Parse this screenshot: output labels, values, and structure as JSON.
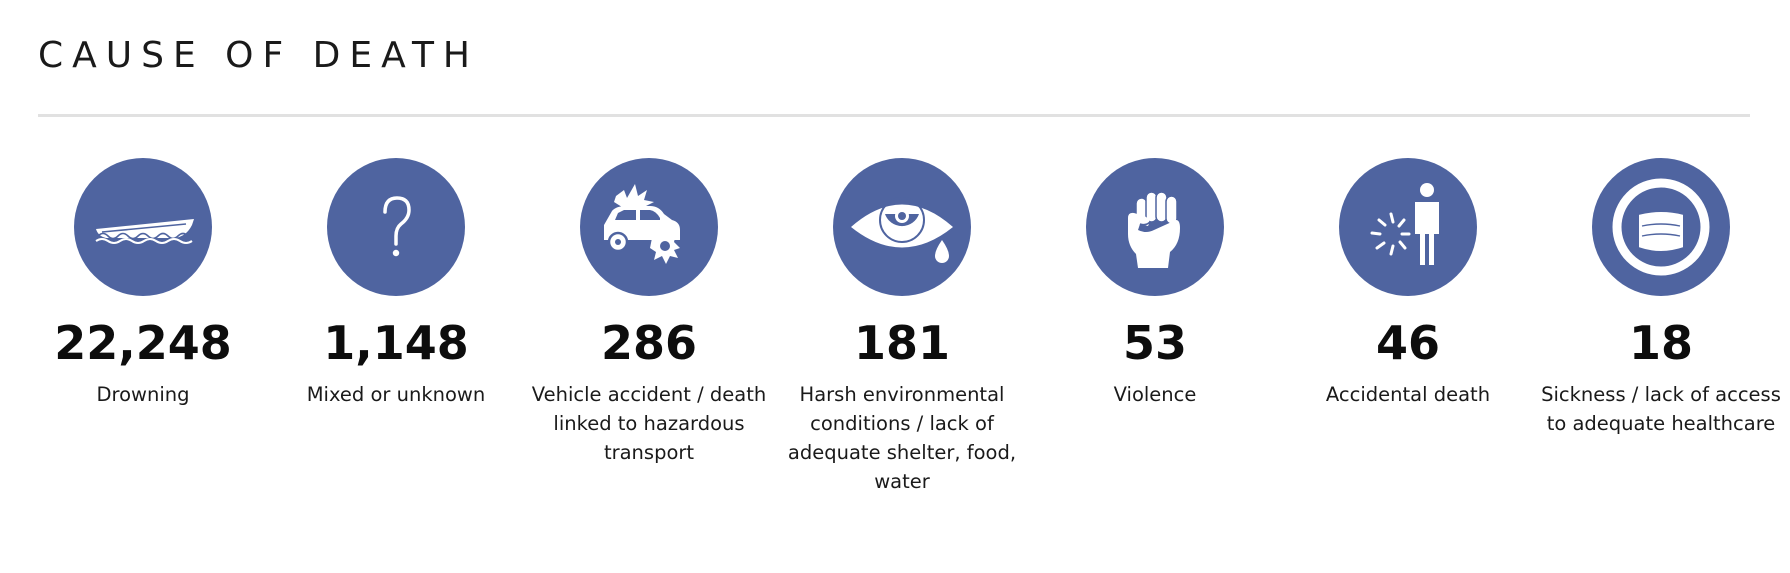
{
  "section": {
    "title": "CAUSE OF DEATH"
  },
  "colors": {
    "icon_background": "#4f64a0",
    "icon_foreground": "#ffffff",
    "divider": "#e1e1e1"
  },
  "stats": [
    {
      "icon": "boat-icon",
      "value": "22,248",
      "label": "Drowning"
    },
    {
      "icon": "question-mark-icon",
      "value": "1,148",
      "label": "Mixed or unknown"
    },
    {
      "icon": "car-crash-icon",
      "value": "286",
      "label": "Vehicle accident / death linked to hazardous transport"
    },
    {
      "icon": "crying-eye-icon",
      "value": "181",
      "label": "Harsh environmental conditions / lack of adequate shelter, food, water"
    },
    {
      "icon": "raised-fist-icon",
      "value": "53",
      "label": "Violence"
    },
    {
      "icon": "person-falling-icon",
      "value": "46",
      "label": "Accidental death"
    },
    {
      "icon": "face-mask-icon",
      "value": "18",
      "label": "Sickness / lack of access to adequate healthcare"
    }
  ]
}
